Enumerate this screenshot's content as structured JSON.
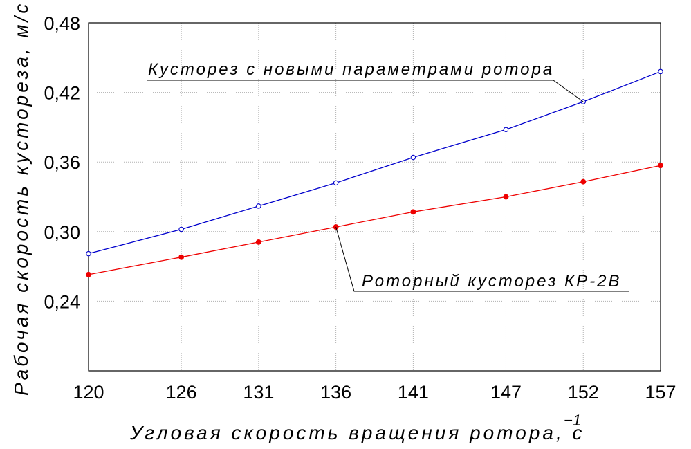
{
  "chart_data": {
    "type": "line",
    "categories": [
      "120",
      "126",
      "131",
      "136",
      "141",
      "147",
      "152",
      "157"
    ],
    "x_numeric": [
      120,
      126,
      131,
      136,
      141,
      147,
      152,
      157
    ],
    "ylim": [
      0.18,
      0.48
    ],
    "yticks": [
      "0,24",
      "0,30",
      "0,36",
      "0,42",
      "0,48"
    ],
    "ytick_values": [
      0.24,
      0.3,
      0.36,
      0.42,
      0.48
    ],
    "xlabel": "Угловая скорость вращения ротора, с",
    "xlabel_superscript": "−1",
    "ylabel": "Рабочая скорость кустореза, м/с",
    "grid": true,
    "series": [
      {
        "name": "Кусторез с новыми параметрами ротора",
        "color": "#0000cc",
        "marker": "open-circle",
        "values": [
          0.281,
          0.302,
          0.322,
          0.342,
          0.364,
          0.388,
          0.412,
          0.438
        ]
      },
      {
        "name": "Роторный кусторез КР-2В",
        "color": "#ee0000",
        "marker": "filled-circle",
        "values": [
          0.263,
          0.278,
          0.291,
          0.304,
          0.317,
          0.33,
          0.343,
          0.357
        ]
      }
    ]
  }
}
